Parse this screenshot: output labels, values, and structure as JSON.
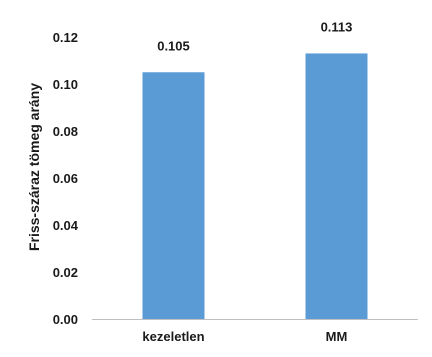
{
  "chart_data": {
    "type": "bar",
    "categories": [
      "kezeletlen",
      "MM"
    ],
    "values": [
      0.105,
      0.113
    ],
    "value_labels": [
      "0.105",
      "0.113"
    ],
    "ylabel": "Friss-száraz tömeg arány",
    "ylim": [
      0,
      0.12
    ],
    "yticks": [
      "0.00",
      "0.02",
      "0.04",
      "0.06",
      "0.08",
      "0.10",
      "0.12"
    ],
    "grid": false,
    "bar_color": "#5b9bd5"
  }
}
